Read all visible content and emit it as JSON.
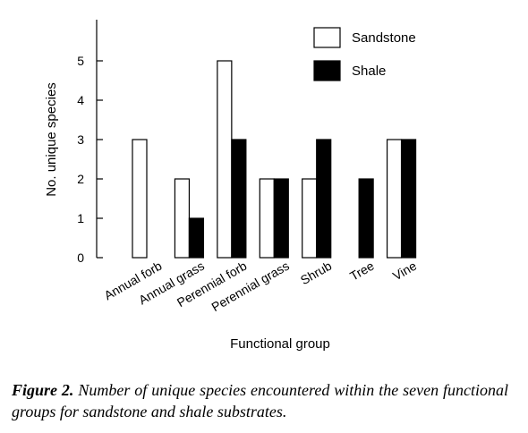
{
  "caption": {
    "label": "Figure 2.",
    "text": "Number of unique species encountered within the seven functional groups for sandstone and shale substrates."
  },
  "colors": {
    "sandstone_fill": "#ffffff",
    "shale_fill": "#000000",
    "stroke": "#000000"
  },
  "chart_data": {
    "type": "bar",
    "categories": [
      "Annual forb",
      "Annual grass",
      "Perennial forb",
      "Perennial grass",
      "Shrub",
      "Tree",
      "Vine"
    ],
    "series": [
      {
        "name": "Sandstone",
        "values": [
          3,
          2,
          5,
          2,
          2,
          0,
          3
        ]
      },
      {
        "name": "Shale",
        "values": [
          0,
          1,
          3,
          2,
          3,
          2,
          3
        ]
      }
    ],
    "xlabel": "Functional group",
    "ylabel": "No. unique species",
    "ylim": [
      0,
      5.5
    ],
    "yticks": [
      0,
      1,
      2,
      3,
      4,
      5
    ],
    "grid": false,
    "legend_position": "top-right"
  }
}
